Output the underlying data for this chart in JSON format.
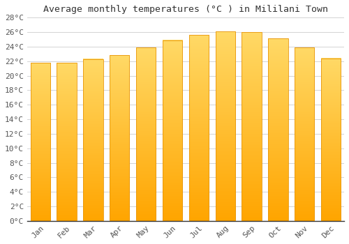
{
  "title": "Average monthly temperatures (°C ) in Mililani Town",
  "months": [
    "Jan",
    "Feb",
    "Mar",
    "Apr",
    "May",
    "Jun",
    "Jul",
    "Aug",
    "Sep",
    "Oct",
    "Nov",
    "Dec"
  ],
  "values": [
    21.8,
    21.8,
    22.3,
    22.8,
    23.9,
    24.9,
    25.6,
    26.1,
    26.0,
    25.1,
    23.9,
    22.4
  ],
  "bar_color_top": "#FFD966",
  "bar_color_bottom": "#FFA500",
  "bar_edge_color": "#E8960A",
  "background_color": "#FFFFFF",
  "plot_bg_color": "#FFFFFF",
  "grid_color": "#CCCCCC",
  "ylim": [
    0,
    28
  ],
  "ytick_step": 2,
  "title_fontsize": 9.5,
  "tick_fontsize": 8,
  "font_family": "monospace"
}
